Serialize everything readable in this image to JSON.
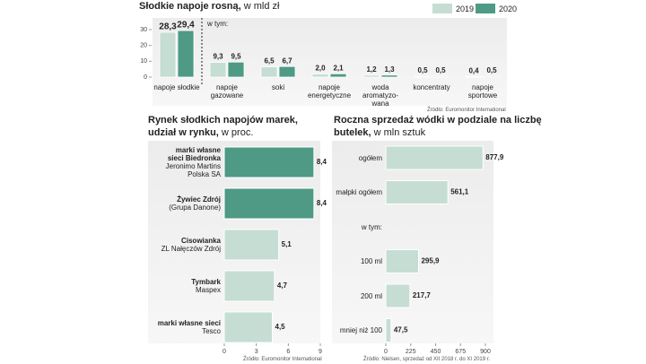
{
  "chart_data": [
    {
      "type": "bar",
      "title": "Słodkie napoje rosną,",
      "subtitle": "w mld zł",
      "annotation": "w tym:",
      "source": "Źródło: Euromonitor International",
      "categories": [
        "napoje słodkie",
        "napoje\ngazowane",
        "soki",
        "napoje\nenergetyczne",
        "woda\naromatyzo-\nwana",
        "koncentraty",
        "napoje\nsportowe"
      ],
      "series": [
        {
          "name": "2019",
          "color": "#c6ddd3",
          "values": [
            28.3,
            9.3,
            6.5,
            2.0,
            1.2,
            0.5,
            0.4
          ],
          "value_labels": [
            "28,3",
            "9,3",
            "6,5",
            "2,0",
            "1,2",
            "0,5",
            "0,4"
          ]
        },
        {
          "name": "2020",
          "color": "#4e9a84",
          "values": [
            29.4,
            9.5,
            6.7,
            2.1,
            1.3,
            0.5,
            0.5
          ],
          "value_labels": [
            "29,4",
            "9,5",
            "6,7",
            "2,1",
            "1,3",
            "0,5",
            "0,5"
          ]
        }
      ],
      "ylim": [
        0,
        32
      ],
      "yticks": [
        0,
        10,
        20,
        30
      ]
    },
    {
      "type": "barh",
      "title": "Rynek słodkich napojów marek, udział w rynku,",
      "subtitle": "w proc.",
      "source": "Źródło: Euromonitor International",
      "categories": [
        "marki własne\nsieci Biedronka",
        "Żywiec Zdrój",
        "Cisowianka",
        "Tymbark",
        "marki własne sieci"
      ],
      "companies": [
        "Jeronimo Martins\nPolska SA",
        "(Grupa Danone)",
        "ZL Nałęczów Zdrój",
        "Maspex",
        "Tesco"
      ],
      "values": [
        8.4,
        8.4,
        5.1,
        4.7,
        4.5
      ],
      "value_labels": [
        "8,4",
        "8,4",
        "5,1",
        "4,7",
        "4,5"
      ],
      "colors": [
        "#4e9a84",
        "#4e9a84",
        "#c6ddd3",
        "#c6ddd3",
        "#c6ddd3"
      ],
      "xlim": [
        0,
        9
      ],
      "xticks": [
        0,
        3,
        6,
        9
      ]
    },
    {
      "type": "barh",
      "title": "Roczna sprzedaż wódki w podziale na liczbę butelek,",
      "subtitle": "w mln sztuk",
      "source": "Źródło: Nielsen, sprzedaż od XII 2018 r. do XI 2019 r.",
      "categories": [
        "ogółem",
        "małpki ogółem",
        "w tym:",
        "100 ml",
        "200 ml",
        "mniej niż 100"
      ],
      "values": [
        877.9,
        561.1,
        null,
        295.9,
        217.7,
        47.5
      ],
      "value_labels": [
        "877,9",
        "561,1",
        null,
        "295,9",
        "217,7",
        "47,5"
      ],
      "colors": [
        "#c6ddd3",
        "#c6ddd3",
        null,
        "#c6ddd3",
        "#c6ddd3",
        "#c6ddd3"
      ],
      "xlim": [
        0,
        900
      ],
      "xticks": [
        0,
        225,
        450,
        675,
        900
      ]
    }
  ]
}
